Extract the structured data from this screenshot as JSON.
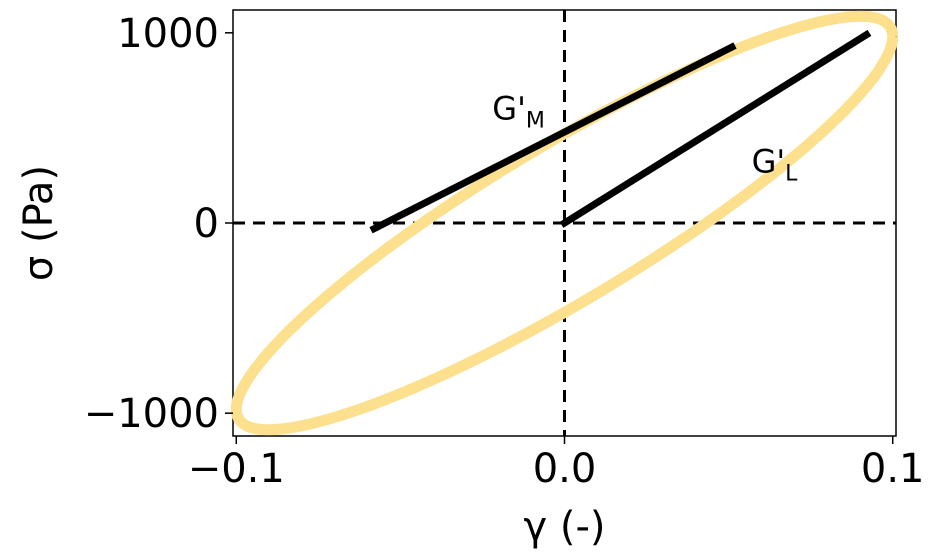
{
  "chart_data": {
    "type": "line",
    "title": "",
    "xlabel": "γ (-)",
    "ylabel": "σ (Pa)",
    "xlim": [
      -0.101,
      0.101
    ],
    "ylim": [
      -1120,
      1120
    ],
    "xticks": [
      -0.1,
      0.0,
      0.1
    ],
    "xtick_labels": [
      "−0.1",
      "0.0",
      "0.1"
    ],
    "yticks": [
      -1000,
      0,
      1000
    ],
    "ytick_labels": [
      "−1000",
      "0",
      "1000"
    ],
    "grid": false,
    "reference_lines": [
      {
        "axis": "x",
        "value": 0,
        "style": "dashed",
        "color": "#000000"
      },
      {
        "axis": "y",
        "value": 0,
        "style": "dashed",
        "color": "#000000"
      }
    ],
    "series": [
      {
        "kind": "lissajous-loop",
        "color": "#fce08e",
        "strain_amplitude": 0.1,
        "stress_at_max_strain": 980,
        "stress_at_zero_strain": 470,
        "x": [
          0.1,
          0.0707,
          0.0,
          -0.0707,
          -0.1,
          -0.0707,
          0.0,
          0.0707
        ],
        "y": [
          980,
          1025,
          470,
          -357,
          -980,
          -1025,
          -470,
          357
        ]
      },
      {
        "kind": "tangent-line",
        "name": "G'M",
        "color": "#000000",
        "x": [
          -0.058,
          0.051
        ],
        "y": [
          -30,
          925
        ]
      },
      {
        "kind": "secant-line",
        "name": "G'L",
        "color": "#000000",
        "x": [
          0.0,
          0.092
        ],
        "y": [
          0,
          990
        ]
      }
    ],
    "annotations": [
      {
        "id": "gm",
        "main": "G'",
        "sub": "M",
        "x": -0.022,
        "y": 545
      },
      {
        "id": "gl",
        "main": "G'",
        "sub": "L",
        "x": 0.057,
        "y": 265
      }
    ]
  }
}
